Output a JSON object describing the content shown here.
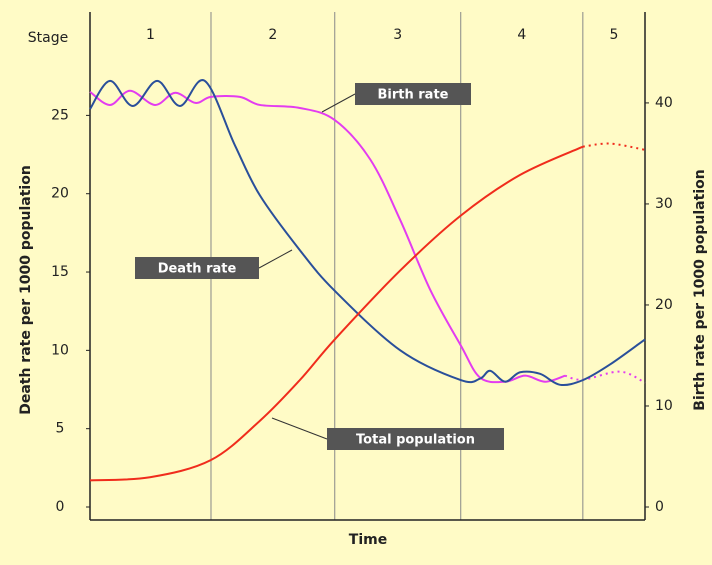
{
  "chart_data": {
    "type": "line",
    "xlabel": "Time",
    "ylabel": "Death rate per 1000 population",
    "y2label": "Birth rate per 1000 population",
    "xlim": [
      0,
      100
    ],
    "ylim": [
      0,
      31.6
    ],
    "yticks": [
      0,
      5,
      10,
      15,
      20,
      25
    ],
    "y2lim": [
      0,
      49
    ],
    "y2ticks": [
      0,
      10,
      20,
      30,
      40
    ],
    "stages": {
      "label": "Stage",
      "names": [
        "1",
        "2",
        "3",
        "4",
        "5"
      ],
      "bounds": [
        0,
        21.8,
        44.1,
        66.8,
        88.8,
        100
      ]
    },
    "series": [
      {
        "name": "Birth rate",
        "color": "#e33cf0",
        "axis": "y2",
        "projected_from_index": 19,
        "x": [
          0,
          3.6,
          7.2,
          11.7,
          15.3,
          19,
          21.8,
          27.0,
          30.6,
          37.8,
          44.1,
          50.5,
          55.9,
          61.3,
          66.8,
          70.3,
          74.8,
          78.4,
          82.0,
          85.6,
          88.8,
          95.5,
          100
        ],
        "values": [
          41.1,
          39.8,
          41.2,
          39.8,
          41.0,
          40.0,
          40.6,
          40.6,
          39.8,
          39.5,
          38.3,
          34.4,
          28.4,
          21.5,
          16.0,
          12.8,
          12.4,
          13.0,
          12.4,
          13.0,
          12.6,
          13.4,
          12.3
        ]
      },
      {
        "name": "Death rate",
        "color": "#2a4f9a",
        "x": [
          0,
          3.6,
          7.7,
          12.1,
          16.2,
          20.7,
          26.1,
          30.6,
          37.8,
          44.1,
          55.9,
          66.8,
          70.3,
          72.1,
          74.8,
          77.5,
          81.1,
          84.7,
          88.8,
          93.7,
          100
        ],
        "values": [
          25.4,
          27.2,
          25.6,
          27.2,
          25.6,
          27.2,
          23.1,
          19.9,
          16.4,
          13.8,
          10.0,
          8.1,
          8.2,
          8.7,
          8.0,
          8.6,
          8.5,
          7.8,
          8.1,
          9.1,
          10.7
        ]
      },
      {
        "name": "Total population",
        "color": "#f02c1c",
        "projected_from_index": 9,
        "x": [
          0,
          10.8,
          21.8,
          30.6,
          37.8,
          44.1,
          55.9,
          66.8,
          77.5,
          88.8,
          93.7,
          100
        ],
        "values": [
          1.7,
          1.9,
          3.0,
          5.5,
          8.1,
          10.7,
          15.1,
          18.6,
          21.2,
          23.0,
          23.2,
          22.8
        ]
      }
    ]
  }
}
